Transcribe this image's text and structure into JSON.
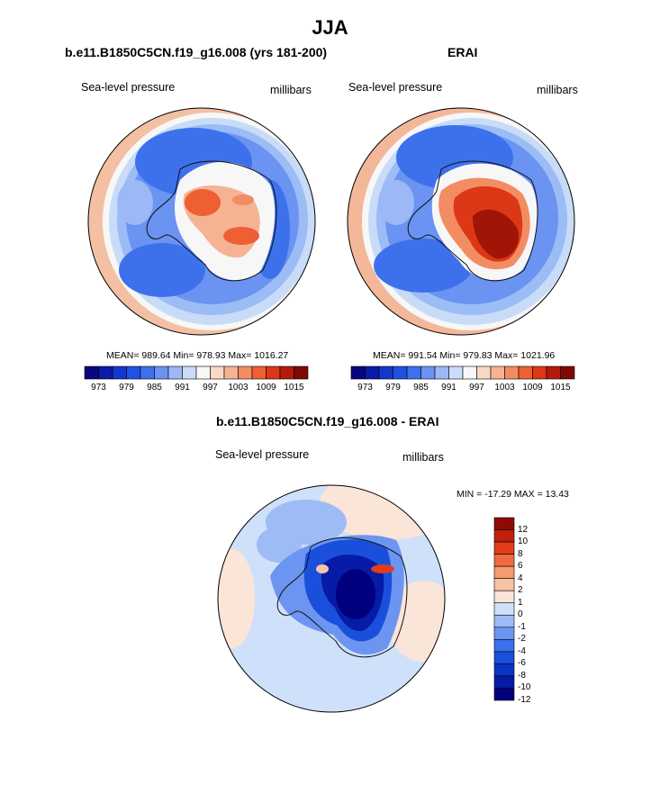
{
  "page": {
    "title": "JJA"
  },
  "panels": [
    {
      "id": "model",
      "title": "b.e11.B1850C5CN.f19_g16.008 (yrs 181-200)",
      "left_label": "Sea-level pressure",
      "right_label": "millibars",
      "stats": "MEAN= 989.64  Min= 978.93  Max= 1016.27"
    },
    {
      "id": "obs",
      "title": "ERAI",
      "left_label": "Sea-level pressure",
      "right_label": "millibars",
      "stats": "MEAN= 991.54  Min= 979.83  Max= 1021.96"
    },
    {
      "id": "diff",
      "title": "b.e11.B1850C5CN.f19_g16.008 - ERAI",
      "left_label": "Sea-level pressure",
      "right_label": "millibars",
      "stats": "MIN = -17.29 MAX =  13.43"
    }
  ],
  "colorbar_abs": {
    "colors": [
      "#08077f",
      "#0c1aa8",
      "#1536cc",
      "#1f52e0",
      "#3d71ec",
      "#6a93f2",
      "#9cb8f6",
      "#cbdcf9",
      "#f7f7f7",
      "#f9d8c6",
      "#f6b393",
      "#f38c63",
      "#ee5f33",
      "#dc3716",
      "#b41a0c",
      "#800805"
    ],
    "tick_labels": [
      "973",
      "979",
      "985",
      "991",
      "997",
      "1003",
      "1009",
      "1015"
    ]
  },
  "colorbar_diff": {
    "colors": [
      "#00007f",
      "#061ba6",
      "#0d33c6",
      "#1a4fdc",
      "#3a70ea",
      "#6c95f2",
      "#9dbcf6",
      "#cfe0fa",
      "#fbe5d8",
      "#f8c3a4",
      "#f49b72",
      "#ef6a3e",
      "#e23d1b",
      "#c11f0e",
      "#900a05"
    ],
    "tick_labels": [
      "12",
      "10",
      "8",
      "6",
      "4",
      "2",
      "1",
      "0",
      "-1",
      "-2",
      "-4",
      "-6",
      "-8",
      "-10",
      "-12"
    ]
  }
}
